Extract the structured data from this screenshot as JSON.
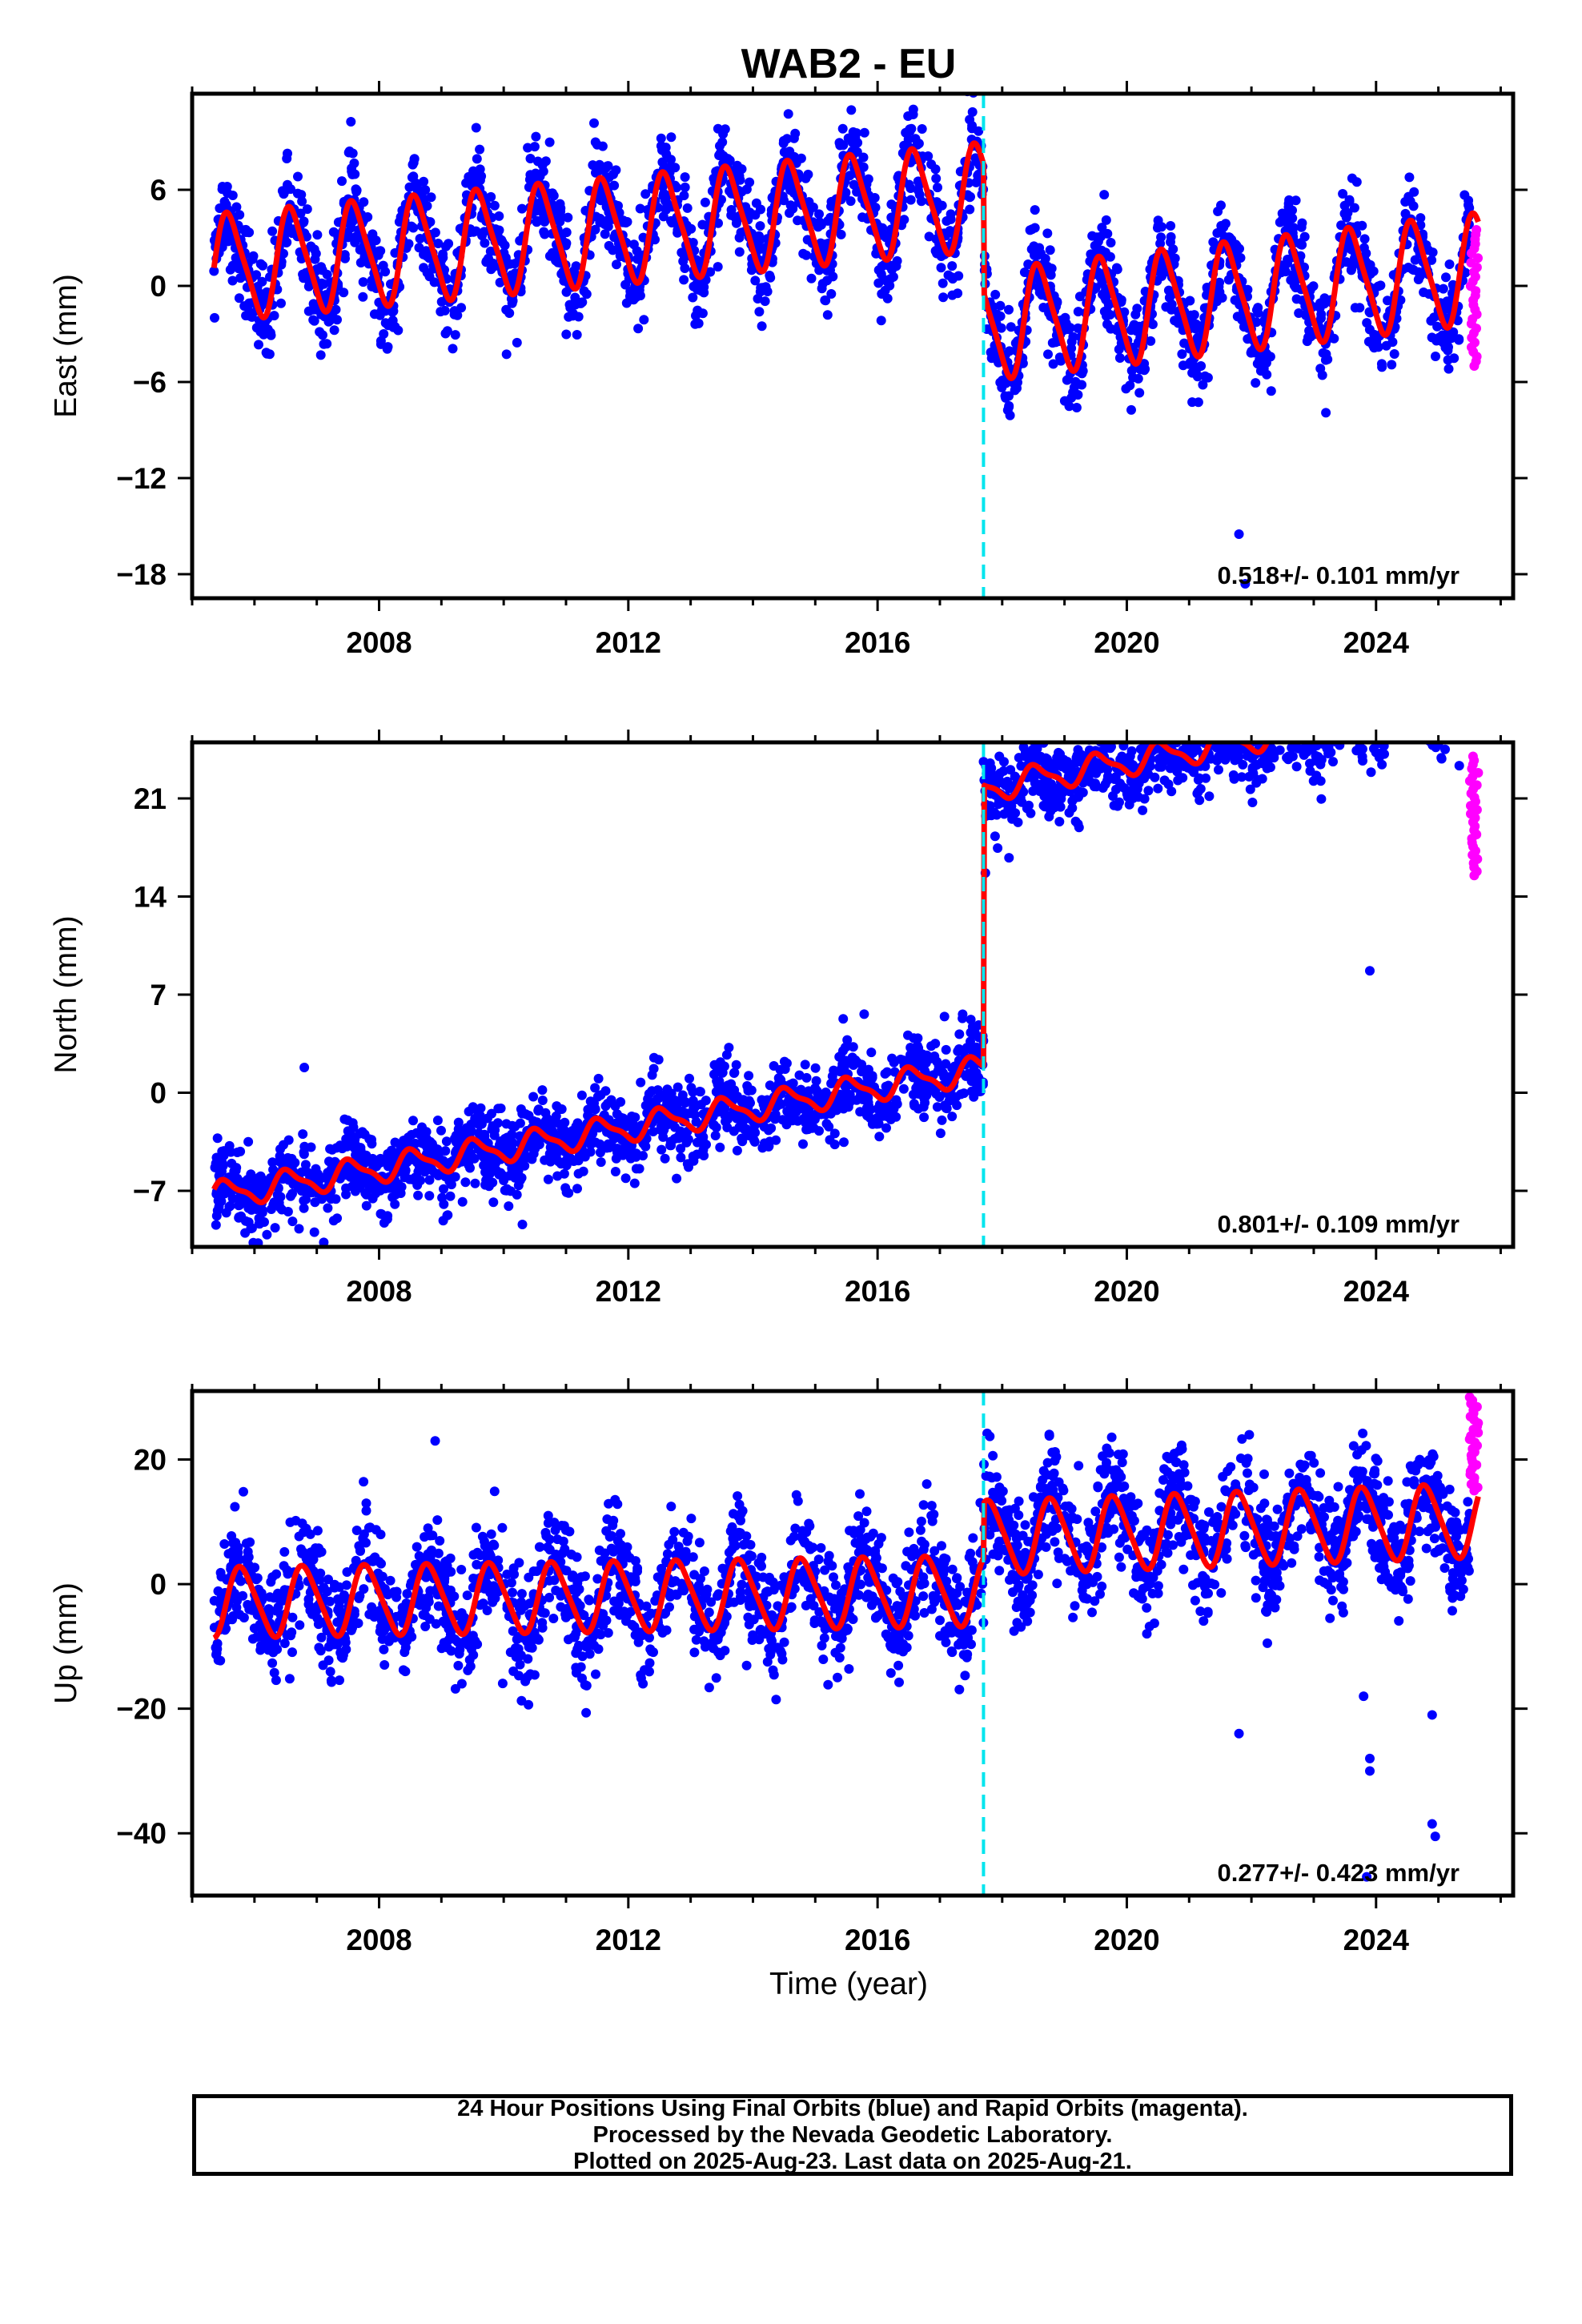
{
  "title": "WAB2 - EU",
  "xlabel": "Time (year)",
  "footer": {
    "line1": "24 Hour Positions Using Final Orbits (blue) and Rapid Orbits (magenta).",
    "line2": "Processed by the Nevada Geodetic Laboratory.",
    "line3": "Plotted on 2025-Aug-23. Last data on 2025-Aug-21."
  },
  "colors": {
    "final_orbits": "#0000ff",
    "rapid_orbits": "#ff00ff",
    "model": "#ff0000",
    "offset_line": "#00e5ee",
    "axes": "#000000"
  },
  "chart_data": [
    {
      "type": "scatter",
      "ylabel": "East (mm)",
      "xlim": [
        2005.0,
        2026.2
      ],
      "ylim": [
        -19.5,
        12
      ],
      "xticks": [
        2008,
        2012,
        2016,
        2020,
        2024
      ],
      "yticks": [
        -18,
        -12,
        -6,
        0,
        6
      ],
      "rate_label": "0.518+/- 0.101 mm/yr",
      "offset_epoch": 2017.7,
      "data_start": 2005.35,
      "final_end": 2025.5,
      "rapid_end": 2025.64,
      "model": {
        "pre": {
          "intercept": 1.0,
          "slope": 0.36,
          "annual_amp": 3.2,
          "semiannual_amp": 0.6,
          "phase": 0.35
        },
        "post": {
          "intercept": -8.2,
          "slope": 0.45,
          "annual_amp": 3.3,
          "semiannual_amp": 0.6,
          "phase": 0.35
        }
      },
      "scatter": {
        "noise": 1.5,
        "rapid_range": [
          -5,
          3.5
        ]
      },
      "outliers": [
        [
          2021.8,
          -15.5
        ],
        [
          2021.9,
          -18.6
        ]
      ]
    },
    {
      "type": "scatter",
      "ylabel": "North (mm)",
      "xlim": [
        2005.0,
        2026.2
      ],
      "ylim": [
        -11,
        25
      ],
      "xticks": [
        2008,
        2012,
        2016,
        2020,
        2024
      ],
      "yticks": [
        -7,
        0,
        7,
        14,
        21
      ],
      "rate_label": "0.801+/- 0.109 mm/yr",
      "offset_epoch": 2017.7,
      "data_start": 2005.35,
      "final_end": 2025.5,
      "rapid_end": 2025.64,
      "model": {
        "pre": {
          "intercept": -7.6,
          "slope": 0.73,
          "annual_amp": 0.9,
          "semiannual_amp": 0.3,
          "phase": 0.3
        },
        "post": {
          "intercept": 11.3,
          "slope": 0.82,
          "annual_amp": 0.9,
          "semiannual_amp": 0.3,
          "phase": 0.3
        }
      },
      "scatter": {
        "noise": 1.4,
        "rapid_range": [
          15.5,
          24
        ]
      },
      "outliers": [
        [
          2023.9,
          8.7
        ],
        [
          2006.8,
          1.8
        ],
        [
          2010.3,
          -9.4
        ]
      ]
    },
    {
      "type": "scatter",
      "ylabel": "Up (mm)",
      "xlim": [
        2005.0,
        2026.2
      ],
      "ylim": [
        -50,
        31
      ],
      "xticks": [
        2008,
        2012,
        2016,
        2020,
        2024
      ],
      "yticks": [
        -40,
        -20,
        0,
        20
      ],
      "rate_label": "0.277+/- 0.423 mm/yr",
      "offset_epoch": 2017.7,
      "data_start": 2005.35,
      "final_end": 2025.5,
      "rapid_end": 2025.64,
      "model": {
        "pre": {
          "intercept": -3.0,
          "slope": 0.15,
          "annual_amp": 5.5,
          "semiannual_amp": 0.8,
          "phase": 0.55
        },
        "post": {
          "intercept": 3.0,
          "slope": 0.35,
          "annual_amp": 5.8,
          "semiannual_amp": 0.8,
          "phase": 0.55
        }
      },
      "scatter": {
        "noise": 4.5,
        "rapid_range": [
          15,
          30
        ]
      },
      "outliers": [
        [
          2008.9,
          23
        ],
        [
          2023.9,
          -30
        ],
        [
          2023.9,
          -28
        ],
        [
          2024.9,
          -21
        ],
        [
          2024.9,
          -38.5
        ],
        [
          2024.95,
          -40.5
        ],
        [
          2023.85,
          -47
        ],
        [
          2021.8,
          -24
        ],
        [
          2023.8,
          -18
        ]
      ]
    }
  ]
}
